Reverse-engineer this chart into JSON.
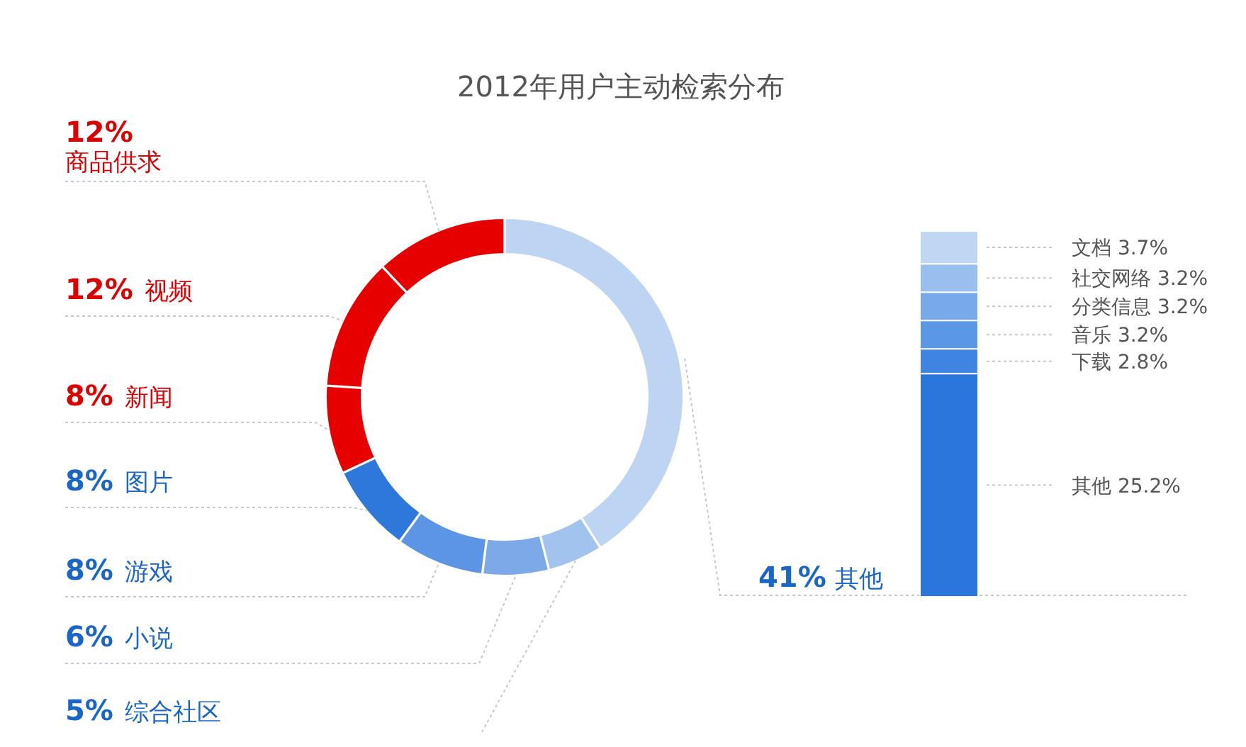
{
  "chart_data": [
    {
      "type": "donut",
      "title": "2012年用户主动检索分布",
      "categories": [
        "其他",
        "综合社区",
        "小说",
        "游戏",
        "图片",
        "新闻",
        "视频",
        "商品供求"
      ],
      "values": [
        41,
        5,
        6,
        8,
        8,
        8,
        12,
        12
      ],
      "value_labels": [
        "41%",
        "5%",
        "6%",
        "8%",
        "8%",
        "8%",
        "12%",
        "12%"
      ],
      "colors": [
        "#bdd5f3",
        "#a3c3ef",
        "#7ea9e9",
        "#5b95e3",
        "#2f78db",
        "#e60000",
        "#e60000",
        "#e60000"
      ]
    },
    {
      "type": "bar",
      "stacked": true,
      "categories": [
        null
      ],
      "series": [
        {
          "color": "#2a76dc",
          "values": [
            25.2
          ],
          "value_labels": [
            "其他 25.2%"
          ]
        },
        {
          "color": "#3e84e0",
          "values": [
            2.8
          ],
          "value_labels": [
            "下载 2.8%"
          ]
        },
        {
          "color": "#5a97e5",
          "values": [
            3.2
          ],
          "value_labels": [
            "音乐 3.2%"
          ]
        },
        {
          "color": "#78aaea",
          "values": [
            3.2
          ],
          "value_labels": [
            "分类信息 3.2%"
          ]
        },
        {
          "color": "#98bfee",
          "values": [
            3.2
          ],
          "value_labels": [
            "社交网络 3.2%"
          ]
        },
        {
          "color": "#c0d7f4",
          "values": [
            3.7
          ],
          "value_labels": [
            "文档 3.7%"
          ]
        }
      ]
    }
  ]
}
